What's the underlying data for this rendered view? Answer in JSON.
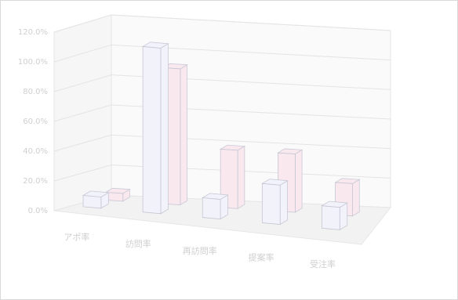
{
  "chart_data": {
    "type": "bar",
    "title": "",
    "xlabel": "",
    "ylabel": "",
    "categories": [
      "アポ率",
      "訪問率",
      "再訪問率",
      "提案率",
      "受注率"
    ],
    "series": [
      {
        "values": [
          8.0,
          118.0,
          14.0,
          28.0,
          16.0
        ],
        "color": "#f2f2fb"
      },
      {
        "values": [
          6.0,
          105.0,
          45.0,
          45.0,
          25.0
        ],
        "color": "#f9e9ef"
      }
    ],
    "ylim": [
      0,
      120
    ],
    "yticks": [
      "0.0%",
      "20.0%",
      "40.0%",
      "60.0%",
      "80.0%",
      "100.0%",
      "120.0%"
    ],
    "grid": true,
    "view": "3d"
  }
}
